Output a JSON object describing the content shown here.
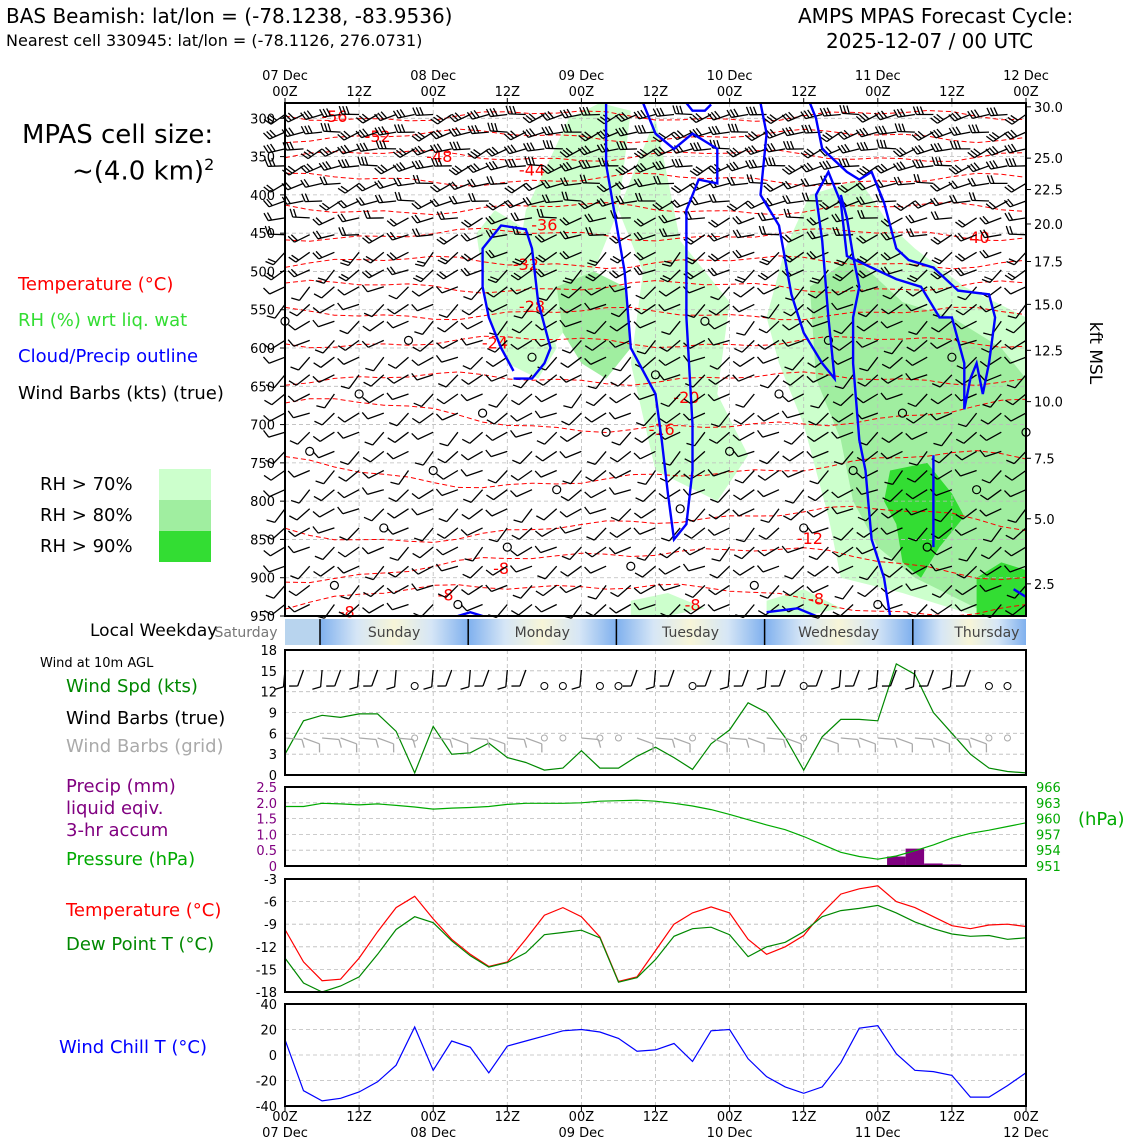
{
  "header": {
    "station_line": "BAS Beamish: lat/lon = (-78.1238, -83.9536)",
    "nearest_line": "Nearest cell 330945: lat/lon = (-78.1126, 276.0731)",
    "forecast_title": "AMPS MPAS Forecast Cycle:",
    "forecast_cycle": "2025-12-07 / 00 UTC"
  },
  "cell_size": {
    "label": "MPAS cell size:",
    "value": "~(4.0 km)",
    "exponent": "2"
  },
  "legends": {
    "temperature": "Temperature (°C)",
    "rh": "RH (%) wrt liq. wat",
    "cloud": "Cloud/Precip outline",
    "barbs": "Wind Barbs (kts) (true)",
    "rh70": "RH > 70%",
    "rh80": "RH > 80%",
    "rh90": "RH > 90%",
    "wind10m": "Wind at 10m AGL",
    "wind_spd": "Wind Spd (kts)",
    "wind_barbs_true": "Wind Barbs (true)",
    "wind_barbs_grid": "Wind Barbs (grid)",
    "precip1": "Precip (mm)",
    "precip2": "liquid eqiv.",
    "precip3": "3-hr accum",
    "pressure": "Pressure (hPa)",
    "pressure_unit": "(hPa)",
    "temp2": "Temperature (°C)",
    "dewpoint": "Dew Point T (°C)",
    "windchill": "Wind Chill T (°C)",
    "kft": "kft MSL",
    "local_weekday": "Local Weekday"
  },
  "colors": {
    "temp": "#ff0000",
    "rh_text": "#33dd33",
    "cloud": "#0000ff",
    "wind_spd": "#008800",
    "barbs_grid": "#aaaaaa",
    "precip": "#800080",
    "pressure": "#00aa00",
    "rh70": "#ccffcc",
    "rh80": "#a0eea0",
    "rh90": "#33dd33"
  },
  "top_time_labels": [
    {
      "day": "07 Dec",
      "hour": "00Z"
    },
    {
      "day": "",
      "hour": "12Z"
    },
    {
      "day": "08 Dec",
      "hour": "00Z"
    },
    {
      "day": "",
      "hour": "12Z"
    },
    {
      "day": "09 Dec",
      "hour": "00Z"
    },
    {
      "day": "",
      "hour": "12Z"
    },
    {
      "day": "10 Dec",
      "hour": "00Z"
    },
    {
      "day": "",
      "hour": "12Z"
    },
    {
      "day": "11 Dec",
      "hour": "00Z"
    },
    {
      "day": "",
      "hour": "12Z"
    },
    {
      "day": "12 Dec",
      "hour": "00Z"
    }
  ],
  "weekdays": [
    "Saturday",
    "Sunday",
    "Monday",
    "Tuesday",
    "Wednesday",
    "Thursday"
  ],
  "chart_data": [
    {
      "type": "heatmap",
      "name": "cross-section",
      "ylabel": "pressure (hPa)",
      "y2label": "kft MSL",
      "xlim": [
        0,
        120
      ],
      "ylim": [
        950,
        280
      ],
      "pressure_ticks": [
        300,
        350,
        400,
        450,
        500,
        550,
        600,
        650,
        700,
        750,
        800,
        850,
        900,
        950
      ],
      "kft_ticks": [
        {
          "p": 285,
          "label": "30.0"
        },
        {
          "p": 352,
          "label": "25.0"
        },
        {
          "p": 393,
          "label": "22.5"
        },
        {
          "p": 438,
          "label": "20.0"
        },
        {
          "p": 487,
          "label": "17.5"
        },
        {
          "p": 543,
          "label": "15.0"
        },
        {
          "p": 603,
          "label": "12.5"
        },
        {
          "p": 670,
          "label": "10.0"
        },
        {
          "p": 744,
          "label": "7.5"
        },
        {
          "p": 823,
          "label": "5.0"
        },
        {
          "p": 908,
          "label": "2.5"
        }
      ],
      "temp_labels": [
        {
          "t": 8,
          "p": 297,
          "label": "-56"
        },
        {
          "t": 15,
          "p": 323,
          "label": "-52"
        },
        {
          "t": 25,
          "p": 349,
          "label": "-48"
        },
        {
          "t": 40,
          "p": 367,
          "label": "-44"
        },
        {
          "t": 42,
          "p": 439,
          "label": "-36"
        },
        {
          "t": 39,
          "p": 490,
          "label": "-32"
        },
        {
          "t": 40,
          "p": 545,
          "label": "-28"
        },
        {
          "t": 34,
          "p": 593,
          "label": "-24"
        },
        {
          "t": 65,
          "p": 664,
          "label": "-20"
        },
        {
          "t": 61,
          "p": 706,
          "label": "-16"
        },
        {
          "t": 112,
          "p": 455,
          "label": "-40"
        },
        {
          "t": 10,
          "p": 944,
          "label": "-8"
        },
        {
          "t": 26,
          "p": 922,
          "label": "-8"
        },
        {
          "t": 35,
          "p": 887,
          "label": "-8"
        },
        {
          "t": 66,
          "p": 935,
          "label": "-8"
        },
        {
          "t": 86,
          "p": 927,
          "label": "-8"
        },
        {
          "t": 85,
          "p": 848,
          "label": "-12"
        }
      ]
    },
    {
      "type": "line",
      "name": "wind-speed",
      "ylim": [
        0,
        18
      ],
      "yticks": [
        0,
        3,
        6,
        9,
        12,
        15,
        18
      ],
      "x": [
        0,
        3,
        6,
        9,
        12,
        15,
        18,
        21,
        24,
        27,
        30,
        33,
        36,
        39,
        42,
        45,
        48,
        51,
        54,
        57,
        60,
        63,
        66,
        69,
        72,
        75,
        78,
        81,
        84,
        87,
        90,
        93,
        96,
        99,
        102,
        105,
        108,
        111,
        114,
        117,
        120
      ],
      "values": [
        3,
        7.8,
        8.6,
        8.3,
        8.8,
        8.8,
        6.3,
        0.3,
        7,
        3,
        3.2,
        4.6,
        2.5,
        1.8,
        0.7,
        1,
        3.5,
        1,
        1,
        2.7,
        4,
        2.5,
        0.8,
        4.5,
        6.5,
        10.4,
        9,
        5.4,
        0.7,
        5.5,
        8,
        8,
        7.8,
        16,
        14.5,
        9,
        6,
        3,
        1,
        0.5,
        0.3
      ]
    },
    {
      "type": "line",
      "name": "pressure",
      "y2lim": [
        951,
        966
      ],
      "y2ticks": [
        951,
        954,
        957,
        960,
        963,
        966
      ],
      "ylim": [
        0,
        2.5
      ],
      "yticks": [
        0,
        0.5,
        1.0,
        1.5,
        2.0,
        2.5
      ],
      "ytick_labels": [
        "0",
        "0.5",
        "1.0",
        "1.5",
        "2.0",
        "2.5"
      ],
      "x": [
        0,
        3,
        6,
        9,
        12,
        15,
        18,
        21,
        24,
        27,
        30,
        33,
        36,
        39,
        42,
        45,
        48,
        51,
        54,
        57,
        60,
        63,
        66,
        69,
        72,
        75,
        78,
        81,
        84,
        87,
        90,
        93,
        96,
        99,
        102,
        105,
        108,
        111,
        114,
        117,
        120
      ],
      "values": [
        962.3,
        962.3,
        962.9,
        962.8,
        962.6,
        962.8,
        962.5,
        962.2,
        961.8,
        962.0,
        962.1,
        962.3,
        962.7,
        962.9,
        962.9,
        962.9,
        963.0,
        963.3,
        963.4,
        963.5,
        963.3,
        962.9,
        962.4,
        961.7,
        960.8,
        959.8,
        958.8,
        957.9,
        956.6,
        955.1,
        953.6,
        952.8,
        952.3,
        952.9,
        953.9,
        955.0,
        956.3,
        957.2,
        957.8,
        958.5,
        959.2
      ],
      "precip": [
        {
          "t": 99,
          "value": 0.3
        },
        {
          "t": 102,
          "value": 0.55
        },
        {
          "t": 105,
          "value": 0.08
        },
        {
          "t": 108,
          "value": 0.05
        }
      ]
    },
    {
      "type": "line",
      "name": "temperature-dewpoint",
      "ylim": [
        -18,
        -3
      ],
      "yticks": [
        -18,
        -15,
        -12,
        -9,
        -6,
        -3
      ],
      "x": [
        0,
        3,
        6,
        9,
        12,
        15,
        18,
        21,
        24,
        27,
        30,
        33,
        36,
        39,
        42,
        45,
        48,
        51,
        54,
        57,
        60,
        63,
        66,
        69,
        72,
        75,
        78,
        81,
        84,
        87,
        90,
        93,
        96,
        99,
        102,
        105,
        108,
        111,
        114,
        117,
        120
      ],
      "series": [
        {
          "name": "Temperature",
          "values": [
            -9.7,
            -14,
            -16.5,
            -16.3,
            -13.5,
            -10,
            -6.8,
            -5.3,
            -8.3,
            -11,
            -13,
            -14.6,
            -14,
            -11,
            -7.8,
            -6.8,
            -8,
            -10.7,
            -16.6,
            -16,
            -12.5,
            -9,
            -7.5,
            -6.7,
            -7.5,
            -11,
            -13,
            -12,
            -10.5,
            -7.5,
            -5,
            -4.3,
            -3.9,
            -6,
            -6.8,
            -8,
            -9.2,
            -9.6,
            -9.1,
            -9,
            -9.3
          ]
        },
        {
          "name": "Dew Point",
          "values": [
            -13.5,
            -16.8,
            -18,
            -17.2,
            -16,
            -13,
            -9.7,
            -8,
            -8.8,
            -11.2,
            -13.2,
            -14.7,
            -14.1,
            -12.8,
            -10.4,
            -10.1,
            -9.8,
            -10.8,
            -16.7,
            -16.1,
            -13.7,
            -10.6,
            -9.6,
            -9.4,
            -10.4,
            -13.3,
            -12,
            -11.4,
            -10,
            -8,
            -7.2,
            -6.9,
            -6.5,
            -7.5,
            -8.7,
            -9.6,
            -10.3,
            -10.6,
            -10.5,
            -11,
            -10.8
          ]
        }
      ]
    },
    {
      "type": "line",
      "name": "wind-chill",
      "ylim": [
        -40,
        40
      ],
      "yticks": [
        -40,
        -20,
        0,
        20,
        40
      ],
      "x": [
        0,
        3,
        6,
        9,
        12,
        15,
        18,
        21,
        24,
        27,
        30,
        33,
        36,
        39,
        42,
        45,
        48,
        51,
        54,
        57,
        60,
        63,
        66,
        69,
        72,
        75,
        78,
        81,
        84,
        87,
        90,
        93,
        96,
        99,
        102,
        105,
        108,
        111,
        114,
        117,
        120
      ],
      "values": [
        12,
        -28,
        -36,
        -34,
        -29,
        -21,
        -8,
        22,
        -12,
        11,
        6,
        -14,
        7,
        11,
        15,
        19,
        20,
        18,
        13,
        3,
        4,
        9,
        -5,
        19,
        20,
        -3,
        -17,
        -25,
        -30,
        -25,
        -6,
        21,
        23,
        1,
        -12,
        -13,
        -16,
        -33,
        -33,
        -24,
        -14
      ],
      "xtick_labels": [
        {
          "day": "07 Dec",
          "hour": "00Z"
        },
        {
          "day": "",
          "hour": "12Z"
        },
        {
          "day": "08 Dec",
          "hour": "00Z"
        },
        {
          "day": "",
          "hour": "12Z"
        },
        {
          "day": "09 Dec",
          "hour": "00Z"
        },
        {
          "day": "",
          "hour": "12Z"
        },
        {
          "day": "10 Dec",
          "hour": "00Z"
        },
        {
          "day": "",
          "hour": "12Z"
        },
        {
          "day": "11 Dec",
          "hour": "00Z"
        },
        {
          "day": "",
          "hour": "12Z"
        },
        {
          "day": "12 Dec",
          "hour": "00Z"
        }
      ]
    }
  ]
}
